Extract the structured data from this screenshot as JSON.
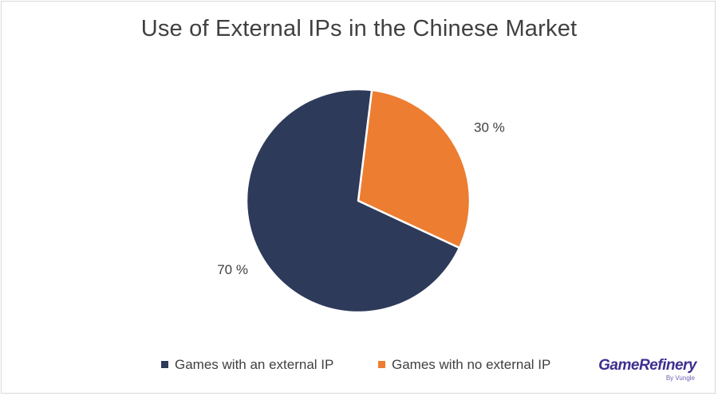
{
  "chart_data": {
    "type": "pie",
    "title": "Use of External IPs in the Chinese Market",
    "categories": [
      "Games with an external IP",
      "Games with no external IP"
    ],
    "values": [
      70,
      30
    ],
    "data_labels": [
      "70 %",
      "30 %"
    ],
    "colors": [
      "#2e3a5a",
      "#ed7d31"
    ],
    "legend_position": "bottom"
  },
  "brand": {
    "name": "GameRefinery",
    "tagline": "By Vungle"
  }
}
